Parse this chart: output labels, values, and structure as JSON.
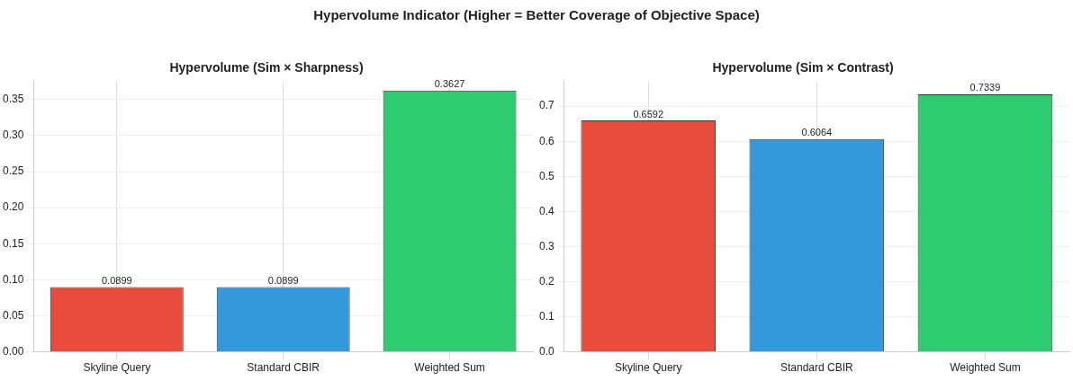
{
  "chart_data": [
    {
      "type": "bar",
      "title": "Hypervolume (Sim × Sharpness)",
      "categories": [
        "Skyline Query",
        "Standard CBIR",
        "Weighted Sum"
      ],
      "values": [
        0.0899,
        0.0899,
        0.3627
      ],
      "colors": [
        "#e74c3c",
        "#3498db",
        "#2ecc71"
      ],
      "ylim": [
        0,
        0.375
      ],
      "yticks": [
        {
          "value": 0,
          "label": "0.00"
        },
        {
          "value": 0.05,
          "label": "0.05"
        },
        {
          "value": 0.1,
          "label": "0.10"
        },
        {
          "value": 0.15,
          "label": "0.15"
        },
        {
          "value": 0.2,
          "label": "0.20"
        },
        {
          "value": 0.25,
          "label": "0.25"
        },
        {
          "value": 0.3,
          "label": "0.30"
        },
        {
          "value": 0.35,
          "label": "0.35"
        }
      ],
      "grid": true,
      "data_labels": true,
      "subtitle": "Hypervolume Indicator (Higher = Better Coverage of Objective Space)"
    },
    {
      "type": "bar",
      "title": "Hypervolume (Sim × Contrast)",
      "categories": [
        "Skyline Query",
        "Standard CBIR",
        "Weighted Sum"
      ],
      "values": [
        0.6592,
        0.6064,
        0.7339
      ],
      "colors": [
        "#e74c3c",
        "#3498db",
        "#2ecc71"
      ],
      "ylim": [
        0,
        0.77
      ],
      "yticks": [
        {
          "value": 0,
          "label": "0.0"
        },
        {
          "value": 0.1,
          "label": "0.1"
        },
        {
          "value": 0.2,
          "label": "0.2"
        },
        {
          "value": 0.3,
          "label": "0.3"
        },
        {
          "value": 0.4,
          "label": "0.4"
        },
        {
          "value": 0.5,
          "label": "0.5"
        },
        {
          "value": 0.6,
          "label": "0.6"
        },
        {
          "value": 0.7,
          "label": "0.7"
        }
      ],
      "grid": true,
      "data_labels": true
    }
  ]
}
